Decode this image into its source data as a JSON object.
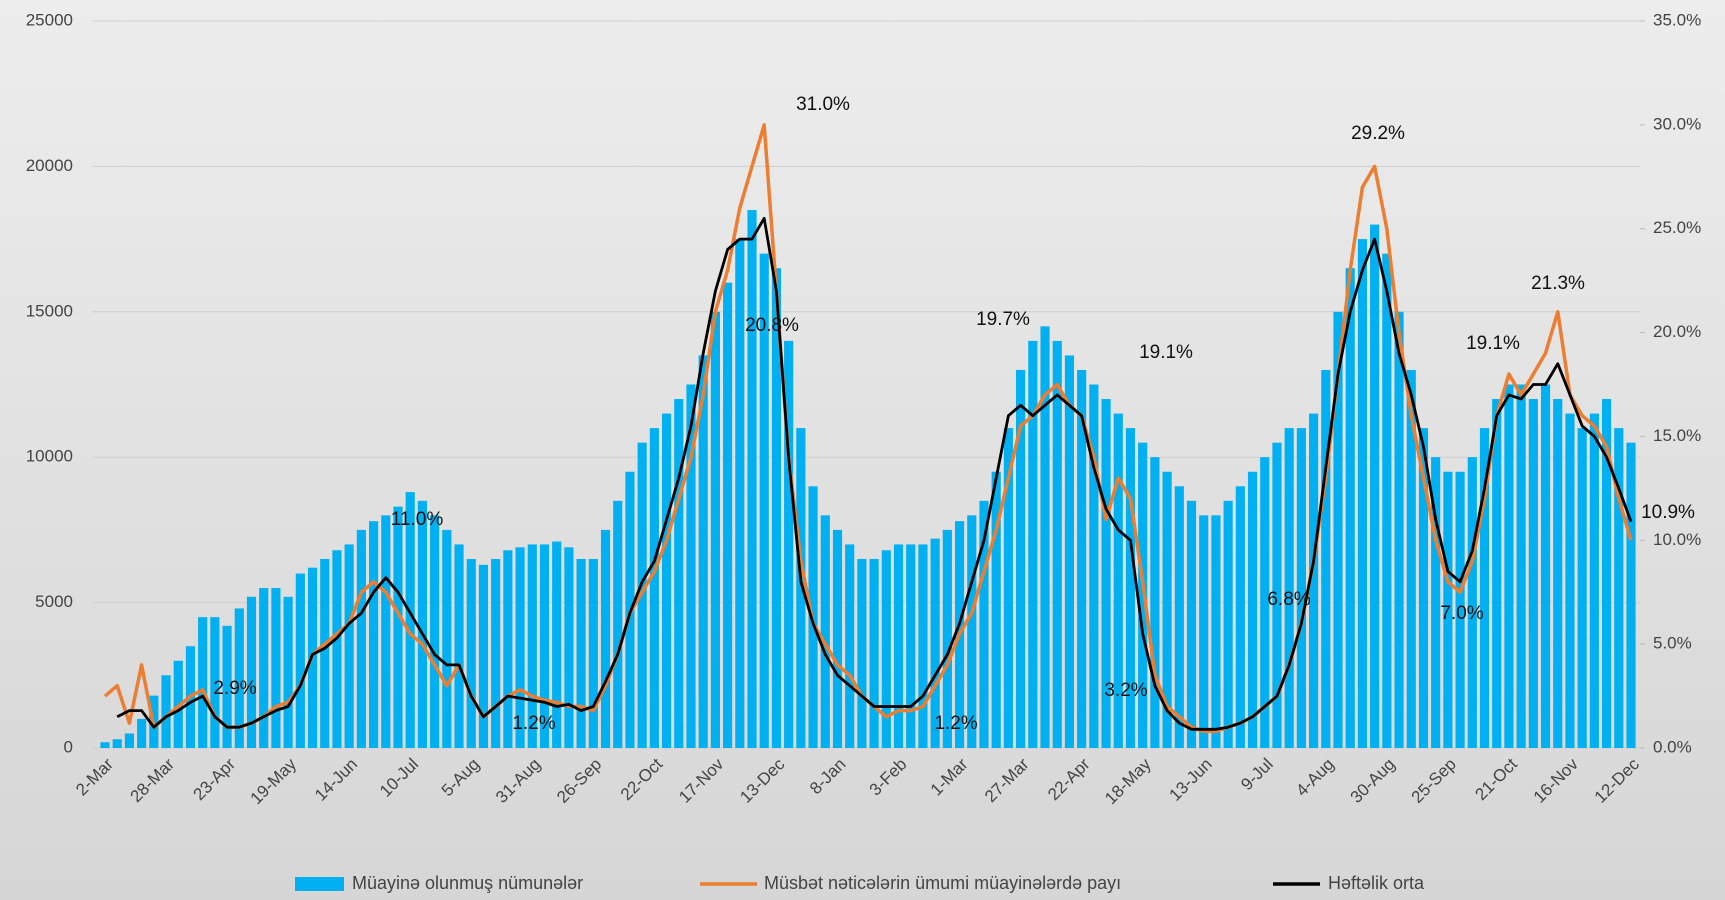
{
  "chart_data": {
    "type": "bar-line",
    "categories": [
      "2-Mar",
      null,
      null,
      null,
      null,
      "28-Mar",
      null,
      null,
      null,
      null,
      "23-Apr",
      null,
      null,
      null,
      null,
      "19-May",
      null,
      null,
      null,
      null,
      "14-Jun",
      null,
      null,
      null,
      null,
      "10-Jul",
      null,
      null,
      null,
      null,
      "5-Aug",
      null,
      null,
      null,
      null,
      "31-Aug",
      null,
      null,
      null,
      null,
      "26-Sep",
      null,
      null,
      null,
      null,
      "22-Oct",
      null,
      null,
      null,
      null,
      "17-Nov",
      null,
      null,
      null,
      null,
      "13-Dec",
      null,
      null,
      null,
      null,
      "8-Jan",
      null,
      null,
      null,
      null,
      "3-Feb",
      null,
      null,
      null,
      null,
      "1-Mar",
      null,
      null,
      null,
      null,
      "27-Mar",
      null,
      null,
      null,
      null,
      "22-Apr",
      null,
      null,
      null,
      null,
      "18-May",
      null,
      null,
      null,
      null,
      "13-Jun",
      null,
      null,
      null,
      null,
      "9-Jul",
      null,
      null,
      null,
      null,
      "4-Aug",
      null,
      null,
      null,
      null,
      "30-Aug",
      null,
      null,
      null,
      null,
      "25-Sep",
      null,
      null,
      null,
      null,
      "21-Oct",
      null,
      null,
      null,
      null,
      "16-Nov",
      null,
      null,
      null,
      null,
      "12-Dec"
    ],
    "series": [
      {
        "name": "Müayinə olunmuş nümunələr",
        "type": "bar",
        "color": "#00b0f0",
        "values": [
          200,
          300,
          500,
          1000,
          1800,
          2500,
          3000,
          3500,
          4500,
          4500,
          4200,
          4800,
          5200,
          5500,
          5500,
          5200,
          6000,
          6200,
          6500,
          6800,
          7000,
          7500,
          7800,
          8000,
          8300,
          8800,
          8500,
          8000,
          7500,
          7000,
          6500,
          6300,
          6500,
          6800,
          6900,
          7000,
          7000,
          7100,
          6900,
          6500,
          6500,
          7500,
          8500,
          9500,
          10500,
          11000,
          11500,
          12000,
          12500,
          13500,
          15000,
          16000,
          17500,
          18500,
          17000,
          16500,
          14000,
          11000,
          9000,
          8000,
          7500,
          7000,
          6500,
          6500,
          6800,
          7000,
          7000,
          7000,
          7200,
          7500,
          7800,
          8000,
          8500,
          9500,
          11000,
          13000,
          14000,
          14500,
          14000,
          13500,
          13000,
          12500,
          12000,
          11500,
          11000,
          10500,
          10000,
          9500,
          9000,
          8500,
          8000,
          8000,
          8500,
          9000,
          9500,
          10000,
          10500,
          11000,
          11000,
          11500,
          13000,
          15000,
          16500,
          17500,
          18000,
          17000,
          15000,
          13000,
          11000,
          10000,
          9500,
          9500,
          10000,
          11000,
          12000,
          12500,
          12500,
          12000,
          12500,
          12000,
          11500,
          11000,
          11500,
          12000,
          11000,
          10500
        ]
      },
      {
        "name": "Müsbət nəticələrin ümumi müayinələrdə payı",
        "type": "line",
        "axis": "y2",
        "color": "#ed7d31",
        "values": [
          2.5,
          3.0,
          1.2,
          4.0,
          1.0,
          1.5,
          2.0,
          2.5,
          2.8,
          1.5,
          1.0,
          1.0,
          1.2,
          1.5,
          2.0,
          2.2,
          3.0,
          4.5,
          5.0,
          5.5,
          6.0,
          7.5,
          8.0,
          7.5,
          6.5,
          5.5,
          5.0,
          4.0,
          3.0,
          4.0,
          2.5,
          1.5,
          2.0,
          2.5,
          2.8,
          2.5,
          2.3,
          2.2,
          2.0,
          2.0,
          1.8,
          3.0,
          4.5,
          6.5,
          7.5,
          8.5,
          10.0,
          12.0,
          14.0,
          17.0,
          21.0,
          23.0,
          26.0,
          28.0,
          30.0,
          22.0,
          14.0,
          9.0,
          6.0,
          5.0,
          4.0,
          3.5,
          2.5,
          2.0,
          1.5,
          1.8,
          1.8,
          2.0,
          3.0,
          4.0,
          5.5,
          6.5,
          8.5,
          10.5,
          13.0,
          15.5,
          16.0,
          17.0,
          17.5,
          16.5,
          16.0,
          14.0,
          11.0,
          13.0,
          12.0,
          8.0,
          3.5,
          2.0,
          1.5,
          1.0,
          0.8,
          0.8,
          1.0,
          1.2,
          1.5,
          2.0,
          2.5,
          4.0,
          6.0,
          9.0,
          13.0,
          18.0,
          23.0,
          27.0,
          28.0,
          25.0,
          20.0,
          16.0,
          13.0,
          10.0,
          8.0,
          7.5,
          9.0,
          12.0,
          16.0,
          18.0,
          17.0,
          18.0,
          19.0,
          21.0,
          17.0,
          16.0,
          15.5,
          14.5,
          12.0,
          10.0
        ]
      },
      {
        "name": "Həftəlik orta",
        "type": "line",
        "axis": "y2",
        "color": "#000000",
        "values": [
          null,
          1.5,
          1.8,
          1.8,
          1.0,
          1.5,
          1.8,
          2.2,
          2.5,
          1.5,
          1.0,
          1.0,
          1.2,
          1.5,
          1.8,
          2.0,
          3.0,
          4.5,
          4.8,
          5.3,
          6.0,
          6.5,
          7.5,
          8.2,
          7.5,
          6.5,
          5.5,
          4.5,
          4.0,
          4.0,
          2.5,
          1.5,
          2.0,
          2.5,
          2.4,
          2.3,
          2.2,
          2.0,
          2.1,
          1.8,
          2.0,
          3.2,
          4.5,
          6.5,
          8.0,
          9.0,
          11.0,
          13.0,
          15.5,
          19.0,
          22.0,
          24.0,
          24.5,
          24.5,
          25.5,
          22.0,
          14.0,
          8.0,
          6.0,
          4.5,
          3.5,
          3.0,
          2.5,
          2.0,
          2.0,
          2.0,
          2.0,
          2.5,
          3.5,
          4.5,
          6.0,
          8.0,
          10.0,
          13.0,
          16.0,
          16.5,
          16.0,
          16.5,
          17.0,
          16.5,
          16.0,
          13.5,
          11.5,
          10.5,
          10.0,
          5.5,
          3.0,
          1.8,
          1.2,
          0.9,
          0.9,
          0.9,
          1.0,
          1.2,
          1.5,
          2.0,
          2.5,
          4.0,
          6.0,
          9.0,
          13.5,
          18.0,
          21.0,
          23.0,
          24.5,
          22.0,
          19.0,
          17.0,
          14.5,
          11.0,
          8.5,
          8.0,
          9.5,
          12.5,
          16.0,
          17.0,
          16.8,
          17.5,
          17.5,
          18.5,
          17.0,
          15.5,
          15.0,
          14.0,
          12.5,
          10.9
        ]
      }
    ],
    "ylim": [
      0,
      25000
    ],
    "yticks": [
      0,
      5000,
      10000,
      15000,
      20000,
      25000
    ],
    "y2lim": [
      0,
      35
    ],
    "y2ticks": [
      {
        "value": 0,
        "label": "0.0%"
      },
      {
        "value": 5,
        "label": "5.0%"
      },
      {
        "value": 10,
        "label": "10.0%"
      },
      {
        "value": 15,
        "label": "15.0%"
      },
      {
        "value": 20,
        "label": "20.0%"
      },
      {
        "value": 25,
        "label": "25.0%"
      },
      {
        "value": 30,
        "label": "30.0%"
      },
      {
        "value": 35,
        "label": "35.0%"
      }
    ],
    "grid": true,
    "legend": "bottom",
    "annotations": [
      "2.9%",
      "11.0%",
      "1.2%",
      "31.0%",
      "20.8%",
      "1.2%",
      "19.7%",
      "19.1%",
      "3.2%",
      "6.8%",
      "29.2%",
      "7.0%",
      "19.1%",
      "21.3%",
      "10.9%"
    ]
  }
}
